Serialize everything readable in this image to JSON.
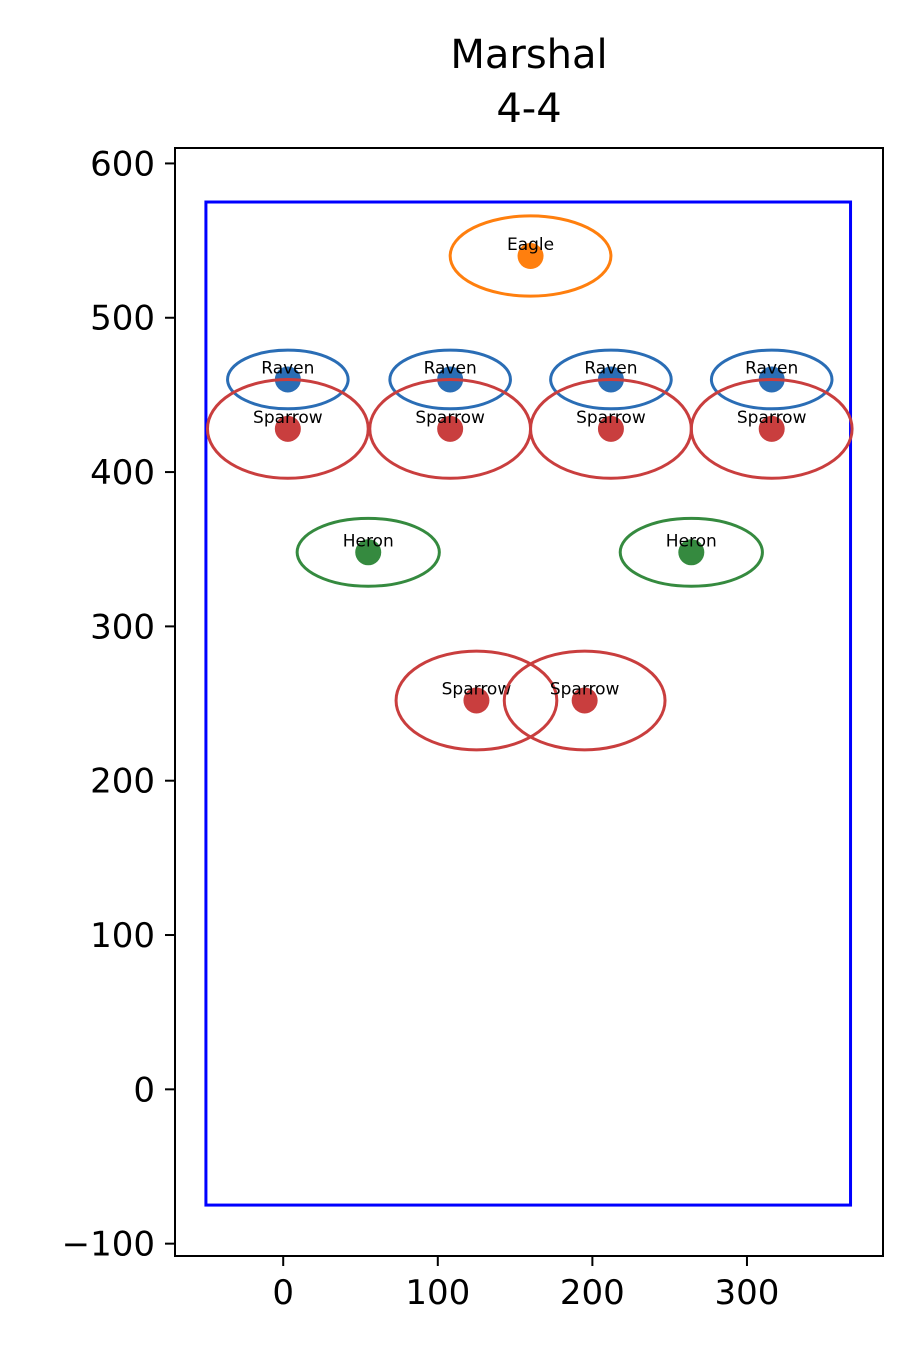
{
  "chart_data": {
    "type": "scatter",
    "title": "Marshal",
    "subtitle": "4-4",
    "xlabel": "",
    "ylabel": "",
    "xlim": [
      -70,
      388
    ],
    "ylim": [
      -108,
      610
    ],
    "x_ticks": [
      0,
      100,
      200,
      300
    ],
    "y_ticks": [
      -100,
      0,
      100,
      200,
      300,
      400,
      500,
      600
    ],
    "x_tick_labels": [
      "0",
      "100",
      "200",
      "300"
    ],
    "y_tick_labels": [
      "−100",
      "0",
      "100",
      "200",
      "300",
      "400",
      "500",
      "600"
    ],
    "grid": false,
    "boundary": {
      "x_min": -50,
      "x_max": 367,
      "y_min": -75,
      "y_max": 575,
      "color": "#0000ff"
    },
    "points": [
      {
        "label": "Eagle",
        "x": 160,
        "y": 540,
        "rx": 52,
        "ry": 26,
        "color": "#ff7f0e"
      },
      {
        "label": "Raven",
        "x": 3,
        "y": 460,
        "rx": 39,
        "ry": 19,
        "color": "#2a6db5"
      },
      {
        "label": "Raven",
        "x": 108,
        "y": 460,
        "rx": 39,
        "ry": 19,
        "color": "#2a6db5"
      },
      {
        "label": "Raven",
        "x": 212,
        "y": 460,
        "rx": 39,
        "ry": 19,
        "color": "#2a6db5"
      },
      {
        "label": "Raven",
        "x": 316,
        "y": 460,
        "rx": 39,
        "ry": 19,
        "color": "#2a6db5"
      },
      {
        "label": "Sparrow",
        "x": 3,
        "y": 428,
        "rx": 52,
        "ry": 32,
        "color": "#c93e3e"
      },
      {
        "label": "Sparrow",
        "x": 108,
        "y": 428,
        "rx": 52,
        "ry": 32,
        "color": "#c93e3e"
      },
      {
        "label": "Sparrow",
        "x": 212,
        "y": 428,
        "rx": 52,
        "ry": 32,
        "color": "#c93e3e"
      },
      {
        "label": "Sparrow",
        "x": 316,
        "y": 428,
        "rx": 52,
        "ry": 32,
        "color": "#c93e3e"
      },
      {
        "label": "Heron",
        "x": 55,
        "y": 348,
        "rx": 46,
        "ry": 22,
        "color": "#358a3f"
      },
      {
        "label": "Heron",
        "x": 264,
        "y": 348,
        "rx": 46,
        "ry": 22,
        "color": "#358a3f"
      },
      {
        "label": "Sparrow",
        "x": 125,
        "y": 252,
        "rx": 52,
        "ry": 32,
        "color": "#c93e3e"
      },
      {
        "label": "Sparrow",
        "x": 195,
        "y": 252,
        "rx": 52,
        "ry": 32,
        "color": "#c93e3e"
      }
    ]
  }
}
